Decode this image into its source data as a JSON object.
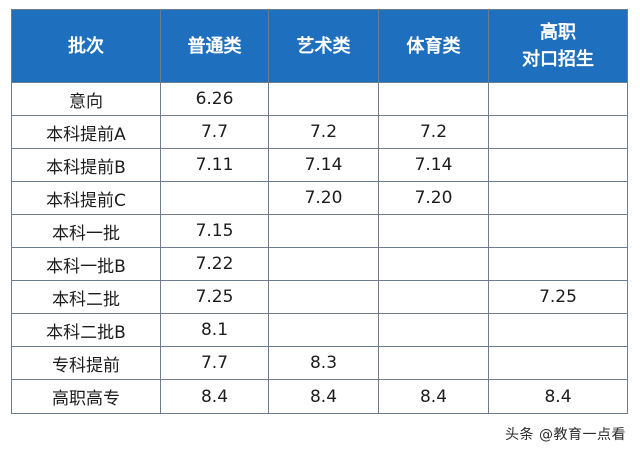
{
  "table": {
    "headers": [
      "批次",
      "普通类",
      "艺术类",
      "体育类",
      "高职\n对口招生"
    ],
    "rows": [
      [
        "意向",
        "6.26",
        "",
        "",
        ""
      ],
      [
        "本科提前A",
        "7.7",
        "7.2",
        "7.2",
        ""
      ],
      [
        "本科提前B",
        "7.11",
        "7.14",
        "7.14",
        ""
      ],
      [
        "本科提前C",
        "",
        "7.20",
        "7.20",
        ""
      ],
      [
        "本科一批",
        "7.15",
        "",
        "",
        ""
      ],
      [
        "本科一批B",
        "7.22",
        "",
        "",
        ""
      ],
      [
        "本科二批",
        "7.25",
        "",
        "",
        "7.25"
      ],
      [
        "本科二批B",
        "8.1",
        "",
        "",
        ""
      ],
      [
        "专科提前",
        "7.7",
        "8.3",
        "",
        ""
      ],
      [
        "高职高专",
        "8.4",
        "8.4",
        "8.4",
        "8.4"
      ]
    ]
  },
  "colors": {
    "header_bg": "#1f6fbf",
    "header_text": "#ffffff",
    "border": "#6d7d8f"
  },
  "watermark": "头条 @教育一点看"
}
